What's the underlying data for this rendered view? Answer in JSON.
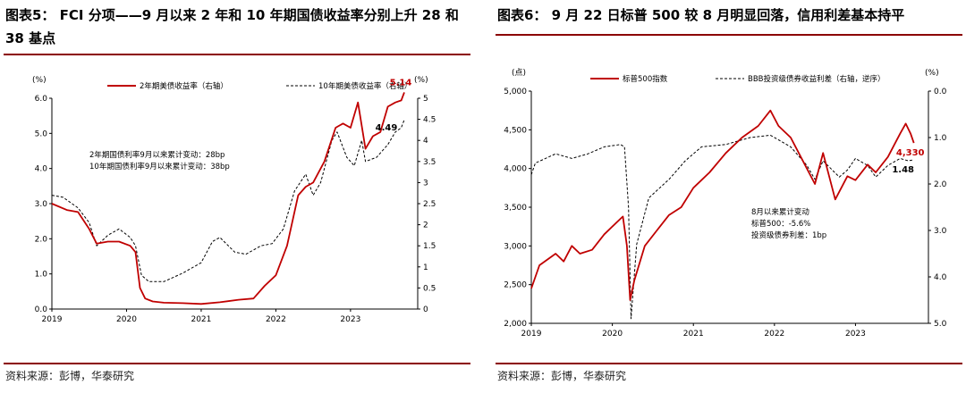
{
  "left": {
    "title": "图表5：  FCI 分项——9 月以来 2 年和 10 年期国债收益率分别上升 28 和 38 基点",
    "source": "资料来源：彭博，华泰研究",
    "chart_data": {
      "type": "line",
      "left_unit": "(%)",
      "right_unit": "(%)",
      "yleft_lim": [
        0,
        6
      ],
      "yleft_ticks": [
        "0.0",
        "1.0",
        "2.0",
        "3.0",
        "4.0",
        "5.0",
        "6.0"
      ],
      "yright_lim": [
        0,
        5
      ],
      "yright_ticks": [
        "0",
        "0.5",
        "1",
        "1.5",
        "2",
        "2.5",
        "3",
        "3.5",
        "4",
        "4.5",
        "5"
      ],
      "x_ticks": [
        "2019",
        "2020",
        "2021",
        "2022",
        "2023"
      ],
      "series": [
        {
          "name": "2年期美债收益率（右轴）",
          "axis": "right",
          "color": "#c00000",
          "style": "solid",
          "points": [
            [
              2019.0,
              2.5
            ],
            [
              2019.2,
              2.35
            ],
            [
              2019.35,
              2.3
            ],
            [
              2019.5,
              1.9
            ],
            [
              2019.6,
              1.55
            ],
            [
              2019.75,
              1.6
            ],
            [
              2019.9,
              1.6
            ],
            [
              2020.05,
              1.5
            ],
            [
              2020.12,
              1.35
            ],
            [
              2020.18,
              0.5
            ],
            [
              2020.25,
              0.25
            ],
            [
              2020.35,
              0.18
            ],
            [
              2020.5,
              0.15
            ],
            [
              2020.75,
              0.14
            ],
            [
              2021.0,
              0.12
            ],
            [
              2021.25,
              0.16
            ],
            [
              2021.5,
              0.22
            ],
            [
              2021.7,
              0.25
            ],
            [
              2021.85,
              0.55
            ],
            [
              2022.0,
              0.8
            ],
            [
              2022.15,
              1.5
            ],
            [
              2022.3,
              2.7
            ],
            [
              2022.4,
              2.9
            ],
            [
              2022.5,
              3.0
            ],
            [
              2022.65,
              3.5
            ],
            [
              2022.8,
              4.3
            ],
            [
              2022.9,
              4.4
            ],
            [
              2023.0,
              4.3
            ],
            [
              2023.1,
              4.9
            ],
            [
              2023.2,
              3.8
            ],
            [
              2023.3,
              4.1
            ],
            [
              2023.4,
              4.2
            ],
            [
              2023.5,
              4.8
            ],
            [
              2023.6,
              4.9
            ],
            [
              2023.68,
              4.95
            ],
            [
              2023.72,
              5.14
            ]
          ]
        },
        {
          "name": "10年期美债收益率（右轴）",
          "axis": "right",
          "color": "#000000",
          "style": "dashed",
          "points": [
            [
              2019.0,
              2.7
            ],
            [
              2019.15,
              2.65
            ],
            [
              2019.35,
              2.4
            ],
            [
              2019.5,
              2.05
            ],
            [
              2019.6,
              1.5
            ],
            [
              2019.75,
              1.75
            ],
            [
              2019.9,
              1.9
            ],
            [
              2020.05,
              1.7
            ],
            [
              2020.12,
              1.5
            ],
            [
              2020.2,
              0.8
            ],
            [
              2020.3,
              0.65
            ],
            [
              2020.5,
              0.65
            ],
            [
              2020.75,
              0.85
            ],
            [
              2021.0,
              1.1
            ],
            [
              2021.15,
              1.6
            ],
            [
              2021.25,
              1.7
            ],
            [
              2021.45,
              1.35
            ],
            [
              2021.6,
              1.3
            ],
            [
              2021.8,
              1.5
            ],
            [
              2021.95,
              1.55
            ],
            [
              2022.1,
              1.9
            ],
            [
              2022.25,
              2.8
            ],
            [
              2022.4,
              3.2
            ],
            [
              2022.5,
              2.7
            ],
            [
              2022.6,
              3.0
            ],
            [
              2022.75,
              4.0
            ],
            [
              2022.82,
              4.2
            ],
            [
              2022.95,
              3.6
            ],
            [
              2023.05,
              3.4
            ],
            [
              2023.15,
              4.0
            ],
            [
              2023.2,
              3.5
            ],
            [
              2023.35,
              3.6
            ],
            [
              2023.5,
              3.9
            ],
            [
              2023.6,
              4.2
            ],
            [
              2023.68,
              4.3
            ],
            [
              2023.72,
              4.49
            ]
          ]
        }
      ],
      "annotations": [
        "2年期国债利率9月以来累计变动：28bp",
        "10年期国债利率9月以来累计变动：38bp"
      ],
      "end_labels": {
        "red": "5.14",
        "black": "4.49"
      }
    }
  },
  "right": {
    "title": "图表6：  9 月 22 日标普 500 较 8 月明显回落，信用利差基本持平",
    "source": "资料来源：彭博，华泰研究",
    "chart_data": {
      "type": "line",
      "left_unit": "(点)",
      "right_unit": "(%)",
      "yleft_lim": [
        2000,
        5000
      ],
      "yleft_ticks": [
        "2,000",
        "2,500",
        "3,000",
        "3,500",
        "4,000",
        "4,500",
        "5,000"
      ],
      "yright_lim": [
        0.0,
        5.0
      ],
      "yright_inverted": true,
      "yright_ticks": [
        "0.0",
        "1.0",
        "2.0",
        "3.0",
        "4.0",
        "5.0"
      ],
      "x_ticks": [
        "2019",
        "2020",
        "2021",
        "2022",
        "2023"
      ],
      "series": [
        {
          "name": "标普500指数",
          "axis": "left",
          "color": "#c00000",
          "style": "solid",
          "points": [
            [
              2019.0,
              2450
            ],
            [
              2019.1,
              2750
            ],
            [
              2019.3,
              2900
            ],
            [
              2019.4,
              2800
            ],
            [
              2019.5,
              3000
            ],
            [
              2019.6,
              2900
            ],
            [
              2019.75,
              2950
            ],
            [
              2019.9,
              3150
            ],
            [
              2020.05,
              3300
            ],
            [
              2020.13,
              3380
            ],
            [
              2020.18,
              3000
            ],
            [
              2020.22,
              2300
            ],
            [
              2020.27,
              2550
            ],
            [
              2020.4,
              3000
            ],
            [
              2020.55,
              3200
            ],
            [
              2020.7,
              3400
            ],
            [
              2020.85,
              3500
            ],
            [
              2021.0,
              3750
            ],
            [
              2021.2,
              3950
            ],
            [
              2021.4,
              4200
            ],
            [
              2021.6,
              4400
            ],
            [
              2021.8,
              4550
            ],
            [
              2021.95,
              4750
            ],
            [
              2022.05,
              4550
            ],
            [
              2022.2,
              4400
            ],
            [
              2022.4,
              4000
            ],
            [
              2022.5,
              3800
            ],
            [
              2022.6,
              4200
            ],
            [
              2022.75,
              3600
            ],
            [
              2022.9,
              3900
            ],
            [
              2023.0,
              3850
            ],
            [
              2023.15,
              4050
            ],
            [
              2023.25,
              3950
            ],
            [
              2023.4,
              4150
            ],
            [
              2023.55,
              4450
            ],
            [
              2023.62,
              4580
            ],
            [
              2023.68,
              4450
            ],
            [
              2023.72,
              4330
            ]
          ]
        },
        {
          "name": "BBB投资级债券收益利差（右轴，逆序）",
          "axis": "right",
          "color": "#000000",
          "style": "dashed",
          "points": [
            [
              2019.0,
              1.8
            ],
            [
              2019.05,
              1.55
            ],
            [
              2019.3,
              1.35
            ],
            [
              2019.5,
              1.45
            ],
            [
              2019.7,
              1.35
            ],
            [
              2019.9,
              1.2
            ],
            [
              2020.1,
              1.15
            ],
            [
              2020.15,
              1.2
            ],
            [
              2020.2,
              2.5
            ],
            [
              2020.23,
              4.9
            ],
            [
              2020.3,
              3.3
            ],
            [
              2020.45,
              2.3
            ],
            [
              2020.7,
              1.9
            ],
            [
              2020.9,
              1.5
            ],
            [
              2021.1,
              1.2
            ],
            [
              2021.4,
              1.15
            ],
            [
              2021.7,
              1.0
            ],
            [
              2021.95,
              0.95
            ],
            [
              2022.2,
              1.2
            ],
            [
              2022.4,
              1.6
            ],
            [
              2022.5,
              1.9
            ],
            [
              2022.6,
              1.5
            ],
            [
              2022.8,
              1.85
            ],
            [
              2022.9,
              1.7
            ],
            [
              2023.0,
              1.45
            ],
            [
              2023.15,
              1.6
            ],
            [
              2023.25,
              1.85
            ],
            [
              2023.4,
              1.6
            ],
            [
              2023.55,
              1.45
            ],
            [
              2023.65,
              1.5
            ],
            [
              2023.72,
              1.48
            ]
          ]
        }
      ],
      "annotations": [
        "8月以来累计变动",
        "标普500：-5.6%",
        "投资级债券利差：1bp"
      ],
      "end_labels": {
        "red": "4,330",
        "black": "1.48"
      }
    }
  }
}
